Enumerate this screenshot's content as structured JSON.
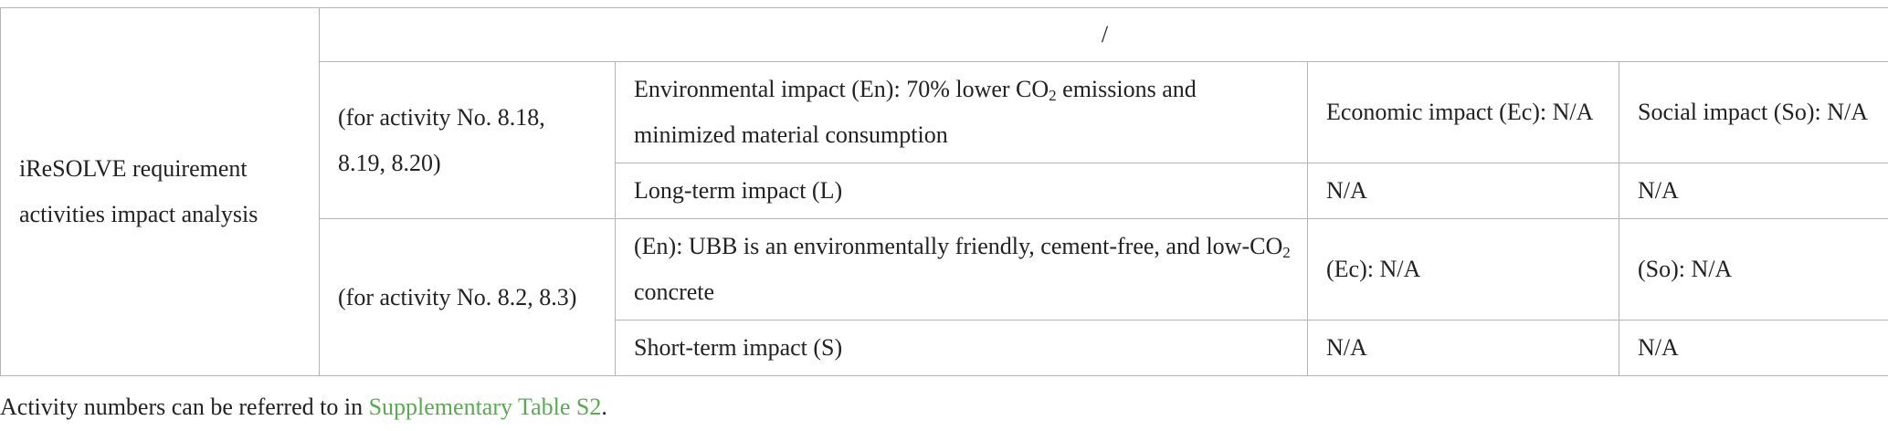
{
  "table": {
    "row_header": "iReSOLVE requirement activities impact analysis",
    "top_header": "/",
    "group_a": {
      "label": "(for activity No. 8.18, 8.19, 8.20)",
      "row1": {
        "environmental_pre": "Environmental impact (En): 70% lower CO",
        "environmental_sub": "2",
        "environmental_post": " emissions and minimized material consumption",
        "economic": "Economic impact (Ec): N/A",
        "social": "Social impact (So): N/A"
      },
      "row2": {
        "impact": "Long-term impact (L)",
        "economic": "N/A",
        "social": "N/A"
      }
    },
    "group_b": {
      "label": "(for activity No. 8.2, 8.3)",
      "row1": {
        "environmental_pre": "(En): UBB is an environmentally friendly, cement-free, and low-CO",
        "environmental_sub": "2",
        "environmental_post": " concrete",
        "economic": "(Ec): N/A",
        "social": "(So): N/A"
      },
      "row2": {
        "impact": "Short-term impact (S)",
        "economic": "N/A",
        "social": "N/A"
      }
    }
  },
  "footnote": {
    "text_before": "Activity numbers can be referred to in ",
    "link_text": "Supplementary Table S2",
    "text_after": ".",
    "link_color": "#5aaa52"
  }
}
